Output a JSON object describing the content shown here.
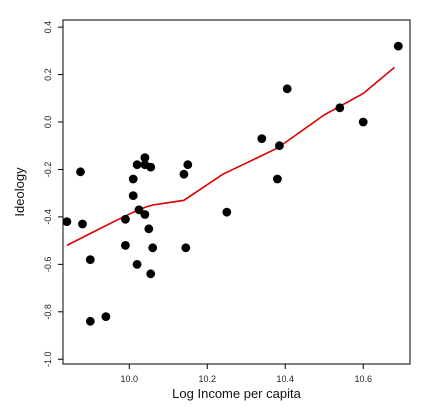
{
  "chart_data": {
    "type": "scatter",
    "xlabel": "Log Income per capita",
    "ylabel": "Ideology",
    "xlim": [
      9.83,
      10.72
    ],
    "ylim": [
      -1.02,
      0.43
    ],
    "xticks": [
      10.0,
      10.2,
      10.4,
      10.6
    ],
    "xtick_labels": [
      "10.0",
      "10.2",
      "10.4",
      "10.6"
    ],
    "yticks": [
      -1.0,
      -0.8,
      -0.6,
      -0.4,
      -0.2,
      0.0,
      0.2,
      0.4
    ],
    "ytick_labels": [
      "-1.0",
      "-0.8",
      "-0.6",
      "-0.4",
      "-0.2",
      "0.0",
      "0.2",
      "0.4"
    ],
    "grid": false,
    "point_color": "#000000",
    "line_color": "#dd0000",
    "series": [
      {
        "type": "scatter",
        "points": [
          [
            9.84,
            -0.42
          ],
          [
            9.875,
            -0.21
          ],
          [
            9.88,
            -0.43
          ],
          [
            9.9,
            -0.58
          ],
          [
            9.9,
            -0.84
          ],
          [
            9.94,
            -0.82
          ],
          [
            9.99,
            -0.41
          ],
          [
            9.99,
            -0.52
          ],
          [
            10.01,
            -0.31
          ],
          [
            10.01,
            -0.24
          ],
          [
            10.02,
            -0.18
          ],
          [
            10.02,
            -0.6
          ],
          [
            10.025,
            -0.37
          ],
          [
            10.04,
            -0.15
          ],
          [
            10.04,
            -0.39
          ],
          [
            10.04,
            -0.18
          ],
          [
            10.05,
            -0.45
          ],
          [
            10.055,
            -0.19
          ],
          [
            10.055,
            -0.64
          ],
          [
            10.06,
            -0.53
          ],
          [
            10.14,
            -0.22
          ],
          [
            10.145,
            -0.53
          ],
          [
            10.15,
            -0.18
          ],
          [
            10.25,
            -0.38
          ],
          [
            10.34,
            -0.07
          ],
          [
            10.38,
            -0.24
          ],
          [
            10.385,
            -0.1
          ],
          [
            10.405,
            0.14
          ],
          [
            10.54,
            0.06
          ],
          [
            10.6,
            0.0
          ],
          [
            10.69,
            0.32
          ]
        ]
      },
      {
        "type": "line",
        "points": [
          [
            9.84,
            -0.52
          ],
          [
            9.9,
            -0.47
          ],
          [
            9.96,
            -0.42
          ],
          [
            10.01,
            -0.38
          ],
          [
            10.04,
            -0.36
          ],
          [
            10.06,
            -0.35
          ],
          [
            10.1,
            -0.34
          ],
          [
            10.14,
            -0.33
          ],
          [
            10.24,
            -0.22
          ],
          [
            10.38,
            -0.11
          ],
          [
            10.5,
            0.03
          ],
          [
            10.6,
            0.12
          ],
          [
            10.68,
            0.23
          ]
        ]
      }
    ]
  }
}
